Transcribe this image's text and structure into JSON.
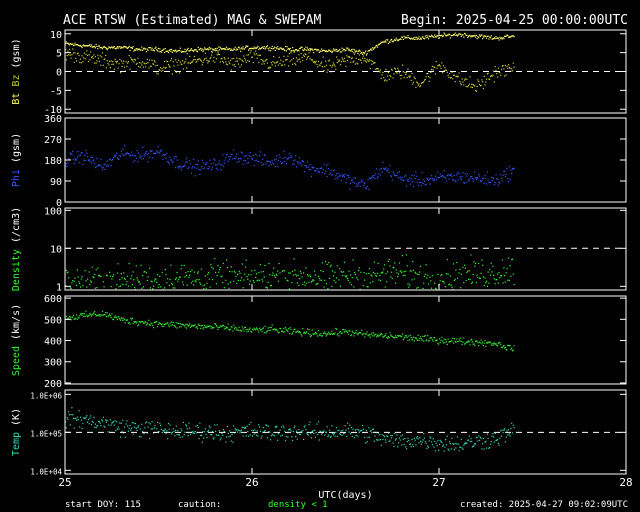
{
  "header": {
    "title": "ACE RTSW (Estimated) MAG & SWEPAM",
    "begin": "Begin: 2025-04-25 00:00:00UTC"
  },
  "footer": {
    "start_doy": "start DOY: 115",
    "caution": "caution:",
    "density_note": "density < 1",
    "created": "created: 2025-04-27 09:02:09UTC"
  },
  "colors": {
    "bt": "#ffff66",
    "bz": "#cccc33",
    "phi": "#3355ff",
    "density": "#33ff33",
    "speed": "#33ee33",
    "temp": "#33ddbb",
    "axis": "#ffffff"
  },
  "chart_data": {
    "type": "scatter",
    "x_axis": {
      "label": "UTC(days)",
      "range": [
        25,
        28
      ],
      "ticks": [
        25,
        26,
        27,
        28
      ],
      "tick_labels": [
        "25",
        "26",
        "27",
        "28"
      ]
    },
    "panels": [
      {
        "id": "mag",
        "ylabel_parts": [
          {
            "text": "Bt",
            "color": "#ffff66"
          },
          {
            "text": " Bz",
            "color": "#cccc33"
          },
          {
            "text": " (gsm)",
            "color": "#ffffff"
          }
        ],
        "scale": "linear",
        "ylim": [
          -11,
          11
        ],
        "ticks": [
          10,
          5,
          0,
          -5,
          -10
        ],
        "tick_labels": [
          "10",
          "5",
          "0",
          "-5",
          "-10"
        ],
        "dashed_ref": 0,
        "series": [
          {
            "name": "Bt",
            "color": "#ffff66",
            "spread": 0.5,
            "x": [
              25.0,
              25.1,
              25.2,
              25.3,
              25.4,
              25.5,
              25.6,
              25.7,
              25.8,
              25.9,
              26.0,
              26.1,
              26.2,
              26.3,
              26.4,
              26.5,
              26.6,
              26.7,
              26.8,
              26.9,
              27.0,
              27.1,
              27.2,
              27.3,
              27.4
            ],
            "y": [
              7.5,
              7.0,
              6.5,
              6.5,
              6.0,
              6.0,
              5.5,
              6.0,
              6.0,
              6.0,
              6.5,
              6.5,
              6.0,
              6.0,
              5.5,
              6.0,
              5.0,
              8.0,
              9.0,
              9.0,
              9.5,
              10.0,
              9.5,
              9.0,
              9.5
            ]
          },
          {
            "name": "Bz",
            "color": "#cccc33",
            "spread": 1.6,
            "x": [
              25.0,
              25.1,
              25.2,
              25.3,
              25.4,
              25.5,
              25.6,
              25.7,
              25.8,
              25.9,
              26.0,
              26.1,
              26.2,
              26.3,
              26.4,
              26.5,
              26.6,
              26.7,
              26.8,
              26.9,
              27.0,
              27.1,
              27.2,
              27.3,
              27.4
            ],
            "y": [
              5.0,
              4.0,
              3.0,
              2.0,
              3.0,
              1.0,
              2.0,
              3.0,
              4.0,
              2.0,
              4.0,
              2.0,
              3.0,
              4.0,
              1.0,
              3.0,
              4.0,
              -1.0,
              0.0,
              -3.0,
              2.0,
              -2.0,
              -4.0,
              0.0,
              1.0
            ]
          }
        ]
      },
      {
        "id": "phi",
        "ylabel_parts": [
          {
            "text": "Phi",
            "color": "#3355ff"
          },
          {
            "text": " (gsm)",
            "color": "#ffffff"
          }
        ],
        "scale": "linear",
        "ylim": [
          0,
          360
        ],
        "ticks": [
          360,
          270,
          180,
          90,
          0
        ],
        "tick_labels": [
          "360",
          "270",
          "180",
          "90",
          "0"
        ],
        "series": [
          {
            "name": "Phi",
            "color": "#3355ff",
            "spread": 25,
            "x": [
              25.0,
              25.1,
              25.2,
              25.3,
              25.4,
              25.5,
              25.6,
              25.7,
              25.8,
              25.9,
              26.0,
              26.1,
              26.2,
              26.3,
              26.4,
              26.5,
              26.6,
              26.7,
              26.8,
              26.9,
              27.0,
              27.1,
              27.2,
              27.3,
              27.4
            ],
            "y": [
              180,
              200,
              150,
              210,
              200,
              220,
              170,
              150,
              160,
              200,
              190,
              170,
              200,
              150,
              140,
              100,
              70,
              150,
              100,
              95,
              105,
              110,
              105,
              95,
              140
            ]
          }
        ]
      },
      {
        "id": "density",
        "ylabel_parts": [
          {
            "text": "Density",
            "color": "#33ff33"
          },
          {
            "text": " (/cm3)",
            "color": "#ffffff"
          }
        ],
        "scale": "log",
        "ylim": [
          0.8,
          115
        ],
        "ticks": [
          100,
          10,
          1
        ],
        "tick_labels": [
          "100",
          "10",
          "1"
        ],
        "dashed_ref": 10,
        "series": [
          {
            "name": "Density",
            "color": "#33ff33",
            "spread": 0.35,
            "x": [
              25.0,
              25.1,
              25.2,
              25.3,
              25.4,
              25.5,
              25.6,
              25.7,
              25.8,
              25.9,
              26.0,
              26.1,
              26.2,
              26.3,
              26.4,
              26.5,
              26.6,
              26.7,
              26.8,
              26.9,
              27.0,
              27.1,
              27.2,
              27.3,
              27.4
            ],
            "y": [
              1.4,
              1.3,
              1.5,
              1.4,
              1.6,
              1.5,
              1.8,
              1.7,
              1.8,
              1.6,
              1.7,
              2.0,
              1.8,
              2.0,
              1.6,
              2.0,
              1.7,
              2.2,
              2.5,
              1.8,
              1.7,
              2.0,
              2.2,
              2.4,
              3.0
            ]
          }
        ]
      },
      {
        "id": "speed",
        "ylabel_parts": [
          {
            "text": "Speed",
            "color": "#33ee33"
          },
          {
            "text": " (km/s)",
            "color": "#ffffff"
          }
        ],
        "scale": "linear",
        "ylim": [
          195,
          610
        ],
        "ticks": [
          600,
          500,
          400,
          300,
          200
        ],
        "tick_labels": [
          "600",
          "500",
          "400",
          "300",
          "200"
        ],
        "series": [
          {
            "name": "Speed",
            "color": "#33ee33",
            "spread": 14,
            "x": [
              25.0,
              25.1,
              25.2,
              25.3,
              25.4,
              25.5,
              25.6,
              25.7,
              25.8,
              25.9,
              26.0,
              26.1,
              26.2,
              26.3,
              26.4,
              26.5,
              26.6,
              26.7,
              26.8,
              26.9,
              27.0,
              27.1,
              27.2,
              27.3,
              27.4
            ],
            "y": [
              510,
              520,
              530,
              500,
              490,
              480,
              475,
              470,
              465,
              460,
              450,
              455,
              445,
              440,
              435,
              445,
              430,
              425,
              420,
              410,
              405,
              400,
              395,
              390,
              360
            ]
          }
        ]
      },
      {
        "id": "temp",
        "ylabel_parts": [
          {
            "text": "Temp",
            "color": "#33ddbb"
          },
          {
            "text": " (K)",
            "color": "#ffffff"
          }
        ],
        "scale": "log",
        "ylim": [
          8000,
          1300000
        ],
        "ticks": [
          1000000,
          100000,
          10000
        ],
        "tick_labels": [
          "1.0E+06",
          "1.0E+05",
          "1.0E+04"
        ],
        "dashed_ref": 100000,
        "series": [
          {
            "name": "Temp",
            "color": "#33ddbb",
            "spread": 0.2,
            "x": [
              25.0,
              25.1,
              25.2,
              25.3,
              25.4,
              25.5,
              25.6,
              25.7,
              25.8,
              25.9,
              26.0,
              26.1,
              26.2,
              26.3,
              26.4,
              26.5,
              26.6,
              26.7,
              26.8,
              26.9,
              27.0,
              27.1,
              27.2,
              27.3,
              27.4
            ],
            "y": [
              250000,
              220000,
              180000,
              140000,
              130000,
              120000,
              110000,
              110000,
              105000,
              100000,
              110000,
              100000,
              110000,
              100000,
              110000,
              110000,
              100000,
              70000,
              60000,
              65000,
              55000,
              50000,
              60000,
              70000,
              120000
            ]
          }
        ]
      }
    ]
  }
}
